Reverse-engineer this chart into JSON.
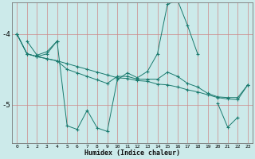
{
  "xlabel": "Humidex (Indice chaleur)",
  "bg_color": "#cceaea",
  "line_color": "#1a7a6e",
  "grid_color_v": "#d9a0a0",
  "grid_color_h": "#d9a0a0",
  "x_ticks": [
    0,
    1,
    2,
    3,
    4,
    5,
    6,
    7,
    8,
    9,
    10,
    11,
    12,
    13,
    14,
    15,
    16,
    17,
    18,
    19,
    20,
    21,
    22,
    23
  ],
  "y_ticks": [
    -4,
    -5
  ],
  "xlim": [
    -0.5,
    23.5
  ],
  "ylim": [
    -5.55,
    -3.55
  ],
  "series": [
    [
      null,
      -4.1,
      -4.3,
      -4.25,
      -4.1,
      -5.3,
      -5.35,
      -5.08,
      -5.33,
      -5.38,
      -4.65,
      -4.55,
      -4.62,
      -4.53,
      -4.28,
      -3.58,
      -3.52,
      -3.88,
      -4.28,
      null,
      -4.98,
      -5.32,
      -5.18,
      null
    ],
    [
      -4.0,
      -4.28,
      -4.32,
      -4.28,
      -4.1,
      null,
      null,
      null,
      null,
      null,
      null,
      null,
      null,
      null,
      null,
      null,
      null,
      null,
      null,
      null,
      null,
      null,
      null,
      -4.72
    ],
    [
      -4.0,
      -4.28,
      -4.32,
      -4.35,
      -4.38,
      -4.42,
      -4.46,
      -4.5,
      -4.54,
      -4.58,
      -4.62,
      -4.63,
      -4.66,
      -4.67,
      -4.71,
      -4.72,
      -4.75,
      -4.79,
      -4.82,
      -4.86,
      -4.9,
      -4.92,
      -4.93,
      -4.72
    ],
    [
      -4.0,
      -4.28,
      -4.32,
      -4.35,
      -4.38,
      -4.5,
      -4.55,
      -4.6,
      -4.65,
      -4.7,
      -4.6,
      -4.6,
      -4.64,
      -4.64,
      -4.64,
      -4.54,
      -4.6,
      -4.7,
      -4.75,
      -4.84,
      -4.89,
      -4.9,
      -4.9,
      -4.72
    ]
  ]
}
